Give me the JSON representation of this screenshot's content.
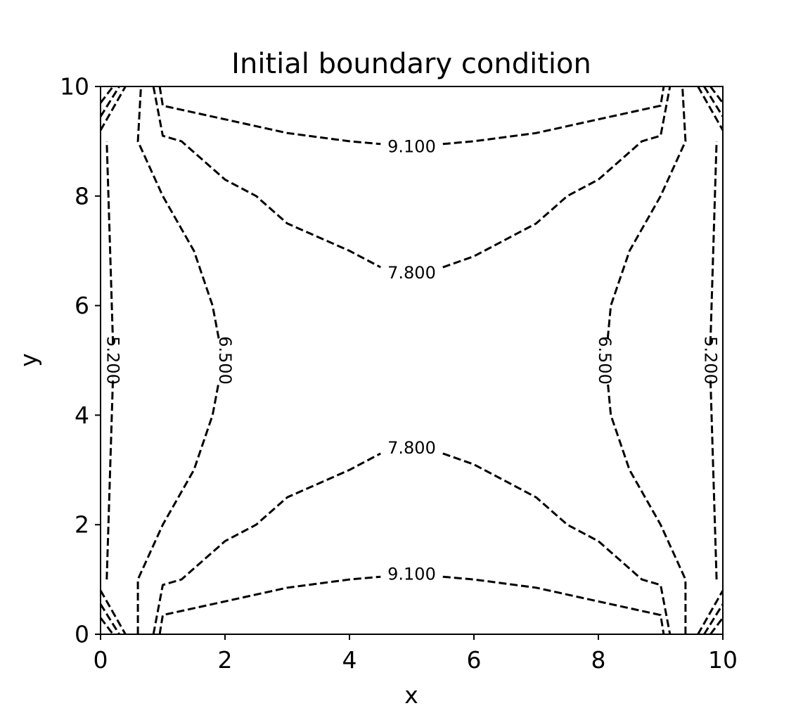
{
  "chart_data": {
    "type": "contour",
    "title": "Initial boundary condition",
    "xlabel": "x",
    "ylabel": "y",
    "xlim": [
      0,
      10
    ],
    "ylim": [
      0,
      10
    ],
    "xticks": [
      0,
      2,
      4,
      6,
      8,
      10
    ],
    "yticks": [
      0,
      2,
      4,
      6,
      8,
      10
    ],
    "xtick_labels": [
      "0",
      "2",
      "4",
      "6",
      "8",
      "10"
    ],
    "ytick_labels": [
      "0",
      "2",
      "4",
      "6",
      "8",
      "10"
    ],
    "line_style": "dashed",
    "line_color": "#000000",
    "grid": false,
    "levels": [
      {
        "level": 5.2,
        "label": "5.200",
        "paths": [
          [
            [
              0.1,
              1.0
            ],
            [
              0.2,
              4.7
            ]
          ],
          [
            [
              0.2,
              5.3
            ],
            [
              0.1,
              9.0
            ]
          ],
          [
            [
              9.9,
              1.0
            ],
            [
              9.8,
              4.7
            ]
          ],
          [
            [
              9.8,
              5.3
            ],
            [
              9.9,
              9.0
            ]
          ]
        ],
        "labels": [
          {
            "text": "5.200",
            "x": 0.2,
            "y": 5.0,
            "rotation": 90
          },
          {
            "text": "5.200",
            "x": 9.8,
            "y": 5.0,
            "rotation": 90
          }
        ]
      },
      {
        "level": 6.5,
        "label": "6.500",
        "paths": [
          [
            [
              0.6,
              0.0
            ],
            [
              0.6,
              1.0
            ],
            [
              1.0,
              2.0
            ],
            [
              1.5,
              3.0
            ],
            [
              1.8,
              4.0
            ],
            [
              1.9,
              4.6
            ]
          ],
          [
            [
              1.9,
              5.4
            ],
            [
              1.8,
              6.0
            ],
            [
              1.5,
              7.0
            ],
            [
              1.0,
              8.0
            ],
            [
              0.6,
              9.0
            ],
            [
              0.65,
              10.0
            ]
          ],
          [
            [
              9.4,
              0.0
            ],
            [
              9.4,
              1.0
            ],
            [
              9.0,
              2.0
            ],
            [
              8.5,
              3.0
            ],
            [
              8.2,
              4.0
            ],
            [
              8.15,
              4.6
            ]
          ],
          [
            [
              8.15,
              5.4
            ],
            [
              8.2,
              6.0
            ],
            [
              8.5,
              7.0
            ],
            [
              9.0,
              8.0
            ],
            [
              9.4,
              9.0
            ],
            [
              9.35,
              10.0
            ]
          ]
        ],
        "labels": [
          {
            "text": "6.500",
            "x": 2.0,
            "y": 5.0,
            "rotation": 90
          },
          {
            "text": "6.500",
            "x": 8.1,
            "y": 5.0,
            "rotation": 90
          }
        ]
      },
      {
        "level": 7.8,
        "label": "7.800",
        "paths": [
          [
            [
              0.85,
              0.0
            ],
            [
              1.0,
              0.9
            ],
            [
              1.3,
              1.0
            ],
            [
              2.0,
              1.7
            ],
            [
              2.5,
              2.0
            ],
            [
              3.0,
              2.5
            ],
            [
              4.0,
              3.0
            ],
            [
              4.5,
              3.3
            ]
          ],
          [
            [
              5.5,
              3.3
            ],
            [
              6.0,
              3.1
            ],
            [
              7.0,
              2.5
            ],
            [
              7.5,
              2.0
            ],
            [
              8.0,
              1.7
            ],
            [
              8.7,
              1.0
            ],
            [
              9.0,
              0.9
            ],
            [
              9.15,
              0.0
            ]
          ],
          [
            [
              0.85,
              10.0
            ],
            [
              1.0,
              9.1
            ],
            [
              1.3,
              9.0
            ],
            [
              2.0,
              8.3
            ],
            [
              2.5,
              8.0
            ],
            [
              3.0,
              7.5
            ],
            [
              4.0,
              7.0
            ],
            [
              4.5,
              6.7
            ]
          ],
          [
            [
              5.5,
              6.7
            ],
            [
              6.0,
              6.9
            ],
            [
              7.0,
              7.5
            ],
            [
              7.5,
              8.0
            ],
            [
              8.0,
              8.3
            ],
            [
              8.7,
              9.0
            ],
            [
              9.0,
              9.1
            ],
            [
              9.15,
              10.0
            ]
          ]
        ],
        "labels": [
          {
            "text": "7.800",
            "x": 5.0,
            "y": 3.4,
            "rotation": 0
          },
          {
            "text": "7.800",
            "x": 5.0,
            "y": 6.6,
            "rotation": 0
          }
        ]
      },
      {
        "level": 9.1,
        "label": "9.100",
        "paths": [
          [
            [
              0.95,
              0.0
            ],
            [
              1.0,
              0.35
            ],
            [
              2.0,
              0.6
            ],
            [
              3.0,
              0.85
            ],
            [
              4.0,
              1.0
            ],
            [
              4.5,
              1.05
            ]
          ],
          [
            [
              5.5,
              1.05
            ],
            [
              6.0,
              1.0
            ],
            [
              7.0,
              0.85
            ],
            [
              8.0,
              0.6
            ],
            [
              9.0,
              0.35
            ],
            [
              9.05,
              0.0
            ]
          ],
          [
            [
              0.95,
              10.0
            ],
            [
              1.0,
              9.65
            ],
            [
              2.0,
              9.4
            ],
            [
              3.0,
              9.15
            ],
            [
              4.0,
              9.0
            ],
            [
              4.5,
              8.95
            ]
          ],
          [
            [
              5.5,
              8.95
            ],
            [
              6.0,
              9.0
            ],
            [
              7.0,
              9.15
            ],
            [
              8.0,
              9.4
            ],
            [
              9.0,
              9.65
            ],
            [
              9.05,
              10.0
            ]
          ]
        ],
        "labels": [
          {
            "text": "9.100",
            "x": 5.0,
            "y": 1.1,
            "rotation": 0
          },
          {
            "text": "9.100",
            "x": 5.0,
            "y": 8.9,
            "rotation": 0
          }
        ]
      }
    ],
    "corner_lines": [
      [
        [
          0.0,
          0.8
        ],
        [
          0.4,
          0.0
        ]
      ],
      [
        [
          0.0,
          0.55
        ],
        [
          0.3,
          0.0
        ]
      ],
      [
        [
          0.0,
          0.3
        ],
        [
          0.2,
          0.0
        ]
      ],
      [
        [
          0.0,
          9.2
        ],
        [
          0.4,
          10.0
        ]
      ],
      [
        [
          0.0,
          9.45
        ],
        [
          0.3,
          10.0
        ]
      ],
      [
        [
          0.0,
          9.7
        ],
        [
          0.2,
          10.0
        ]
      ],
      [
        [
          9.6,
          0.0
        ],
        [
          10.0,
          0.8
        ]
      ],
      [
        [
          9.7,
          0.0
        ],
        [
          10.0,
          0.55
        ]
      ],
      [
        [
          9.8,
          0.0
        ],
        [
          10.0,
          0.3
        ]
      ],
      [
        [
          9.6,
          10.0
        ],
        [
          10.0,
          9.2
        ]
      ],
      [
        [
          9.7,
          10.0
        ],
        [
          10.0,
          9.45
        ]
      ],
      [
        [
          9.8,
          10.0
        ],
        [
          10.0,
          9.7
        ]
      ]
    ]
  }
}
